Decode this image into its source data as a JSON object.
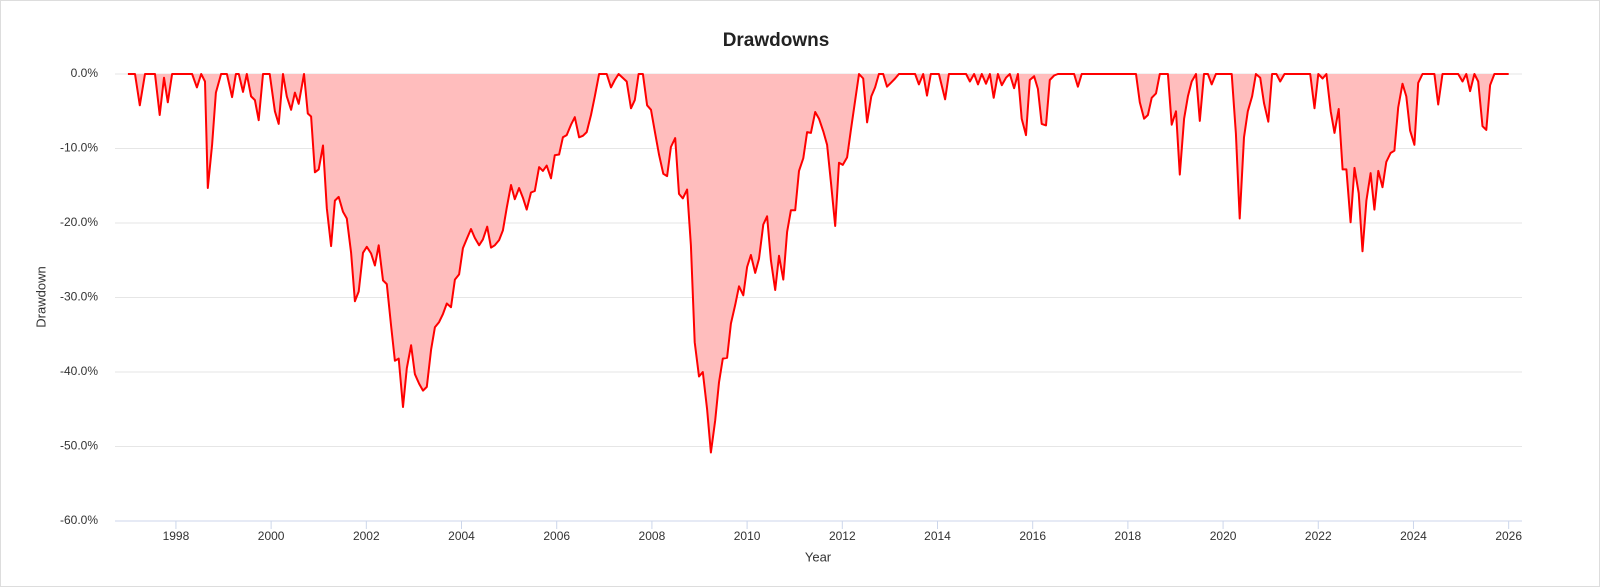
{
  "chart_data": {
    "type": "area",
    "title": "Drawdowns",
    "xlabel": "Year",
    "ylabel": "Drawdown",
    "series": [
      {
        "color": "#ff0000",
        "fill": "#ffbdbd",
        "x": [
          1996.99,
          1997.14,
          1997.24,
          1997.35,
          1997.56,
          1997.66,
          1997.75,
          1997.83,
          1997.92,
          1998.34,
          1998.44,
          1998.53,
          1998.61,
          1998.67,
          1998.76,
          1998.84,
          1998.95,
          1999.07,
          1999.18,
          1999.26,
          1999.32,
          1999.41,
          1999.49,
          1999.58,
          1999.66,
          1999.74,
          1999.83,
          1999.97,
          2000.08,
          2000.16,
          2000.25,
          2000.33,
          2000.42,
          2000.5,
          2000.58,
          2000.69,
          2000.77,
          2000.84,
          2000.92,
          2001.0,
          2001.09,
          2001.17,
          2001.26,
          2001.34,
          2001.42,
          2001.51,
          2001.59,
          2001.68,
          2001.76,
          2001.84,
          2001.93,
          2002.01,
          2002.1,
          2002.18,
          2002.26,
          2002.35,
          2002.43,
          2002.52,
          2002.6,
          2002.68,
          2002.77,
          2002.85,
          2002.94,
          2003.02,
          2003.11,
          2003.19,
          2003.27,
          2003.36,
          2003.44,
          2003.53,
          2003.61,
          2003.69,
          2003.78,
          2003.86,
          2003.95,
          2004.03,
          2004.12,
          2004.2,
          2004.28,
          2004.37,
          2004.45,
          2004.54,
          2004.62,
          2004.7,
          2004.79,
          2004.87,
          2004.95,
          2005.04,
          2005.12,
          2005.21,
          2005.29,
          2005.37,
          2005.46,
          2005.54,
          2005.63,
          2005.71,
          2005.79,
          2005.88,
          2005.96,
          2006.05,
          2006.13,
          2006.21,
          2006.3,
          2006.38,
          2006.47,
          2006.55,
          2006.63,
          2006.72,
          2006.8,
          2006.89,
          2007.05,
          2007.14,
          2007.22,
          2007.3,
          2007.47,
          2007.56,
          2007.64,
          2007.72,
          2007.81,
          2007.9,
          2007.98,
          2008.07,
          2008.15,
          2008.24,
          2008.32,
          2008.4,
          2008.49,
          2008.57,
          2008.65,
          2008.74,
          2008.82,
          2008.9,
          2008.99,
          2009.07,
          2009.16,
          2009.24,
          2009.33,
          2009.41,
          2009.49,
          2009.58,
          2009.66,
          2009.75,
          2009.83,
          2009.92,
          2010.0,
          2010.08,
          2010.17,
          2010.25,
          2010.34,
          2010.42,
          2010.5,
          2010.59,
          2010.67,
          2010.76,
          2010.84,
          2010.92,
          2011.01,
          2011.09,
          2011.18,
          2011.26,
          2011.34,
          2011.43,
          2011.51,
          2011.6,
          2011.68,
          2011.76,
          2011.85,
          2011.93,
          2012.01,
          2012.1,
          2012.18,
          2012.27,
          2012.35,
          2012.44,
          2012.52,
          2012.61,
          2012.69,
          2012.77,
          2012.86,
          2012.94,
          2013.02,
          2013.11,
          2013.19,
          2013.53,
          2013.61,
          2013.7,
          2013.78,
          2013.86,
          2014.03,
          2014.16,
          2014.24,
          2014.6,
          2014.68,
          2014.77,
          2014.85,
          2014.93,
          2015.02,
          2015.1,
          2015.18,
          2015.27,
          2015.35,
          2015.44,
          2015.52,
          2015.61,
          2015.69,
          2015.77,
          2015.86,
          2015.94,
          2016.03,
          2016.11,
          2016.19,
          2016.28,
          2016.36,
          2016.45,
          2016.53,
          2016.87,
          2016.95,
          2017.03,
          2018.17,
          2018.25,
          2018.34,
          2018.42,
          2018.5,
          2018.59,
          2018.67,
          2018.84,
          2018.92,
          2019.01,
          2019.09,
          2019.18,
          2019.26,
          2019.34,
          2019.43,
          2019.51,
          2019.6,
          2019.68,
          2019.76,
          2019.85,
          2020.18,
          2020.27,
          2020.35,
          2020.44,
          2020.52,
          2020.61,
          2020.69,
          2020.78,
          2020.86,
          2020.95,
          2021.03,
          2021.12,
          2021.2,
          2021.29,
          2021.83,
          2021.92,
          2022.0,
          2022.09,
          2022.17,
          2022.26,
          2022.34,
          2022.43,
          2022.51,
          2022.59,
          2022.68,
          2022.76,
          2022.85,
          2022.93,
          2023.01,
          2023.1,
          2023.18,
          2023.26,
          2023.35,
          2023.43,
          2023.52,
          2023.6,
          2023.68,
          2023.77,
          2023.85,
          2023.93,
          2024.02,
          2024.1,
          2024.19,
          2024.44,
          2024.52,
          2024.61,
          2024.94,
          2025.03,
          2025.11,
          2025.19,
          2025.28,
          2025.36,
          2025.45,
          2025.53,
          2025.61,
          2025.7,
          2026.0
        ],
        "values": [
          0,
          0,
          -4.2,
          0,
          0,
          -5.5,
          -0.5,
          -3.8,
          0,
          0,
          -1.8,
          0,
          -1,
          -15.3,
          -9.5,
          -2.5,
          0,
          0,
          -3.1,
          0,
          0,
          -2.4,
          0,
          -3,
          -3.5,
          -6.2,
          0,
          0,
          -5,
          -6.7,
          0,
          -3,
          -4.8,
          -2.5,
          -4,
          0,
          -5.3,
          -5.7,
          -13.2,
          -12.8,
          -9.6,
          -18,
          -23.1,
          -17,
          -16.5,
          -18.5,
          -19.4,
          -24,
          -30.5,
          -29.2,
          -24,
          -23.2,
          -24.1,
          -25.7,
          -23,
          -27.7,
          -28.2,
          -33.8,
          -38.5,
          -38.2,
          -44.7,
          -39.5,
          -36.4,
          -40.3,
          -41.6,
          -42.5,
          -42,
          -37,
          -34,
          -33.3,
          -32.2,
          -30.8,
          -31.3,
          -27.6,
          -26.9,
          -23.4,
          -22,
          -20.8,
          -22,
          -23,
          -22.2,
          -20.5,
          -23.3,
          -23,
          -22.3,
          -21,
          -18,
          -14.9,
          -16.8,
          -15.3,
          -16.6,
          -18.2,
          -15.9,
          -15.7,
          -12.5,
          -13,
          -12.3,
          -14,
          -10.9,
          -10.8,
          -8.5,
          -8.2,
          -6.8,
          -5.8,
          -8.5,
          -8.3,
          -7.8,
          -5.5,
          -3,
          0,
          0,
          -1.8,
          -0.8,
          0,
          -1,
          -4.6,
          -3.5,
          0,
          0,
          -4.2,
          -4.8,
          -8,
          -10.8,
          -13.4,
          -13.7,
          -9.8,
          -8.6,
          -16.1,
          -16.7,
          -15.5,
          -23,
          -36,
          -40.6,
          -40,
          -45,
          -50.8,
          -46.5,
          -41.4,
          -38.2,
          -38.1,
          -33.5,
          -31,
          -28.5,
          -29.7,
          -25.9,
          -24.3,
          -26.7,
          -24.8,
          -20.2,
          -19.1,
          -25,
          -29,
          -24.4,
          -27.6,
          -21.2,
          -18.3,
          -18.3,
          -13,
          -11.3,
          -7.8,
          -7.9,
          -5.1,
          -6,
          -7.7,
          -9.5,
          -14.5,
          -20.4,
          -11.9,
          -12.2,
          -11.2,
          -7.5,
          -3.5,
          0,
          -0.6,
          -6.5,
          -3,
          -1.8,
          0,
          0,
          -1.7,
          -1.2,
          -0.6,
          0,
          0,
          -1.4,
          0,
          -2.9,
          0,
          0,
          -3.4,
          0,
          0,
          -1,
          0,
          -1.4,
          0,
          -1.3,
          0,
          -3.2,
          0,
          -1.5,
          -0.5,
          0,
          -1.9,
          0,
          -6,
          -8.2,
          -0.8,
          -0.3,
          -2,
          -6.7,
          -6.9,
          -0.8,
          -0.2,
          0,
          0,
          -1.7,
          0,
          0,
          -3.8,
          -6,
          -5.5,
          -3.2,
          -2.6,
          0,
          0,
          -6.8,
          -5,
          -13.5,
          -6,
          -3,
          -1,
          0,
          -6.3,
          0,
          0,
          -1.4,
          0,
          0,
          -8,
          -19.4,
          -8.5,
          -5,
          -3,
          0,
          -0.5,
          -3.9,
          -6.4,
          0,
          0,
          -1,
          0,
          0,
          -4.6,
          0,
          -0.6,
          0,
          -5,
          -7.9,
          -4.7,
          -12.8,
          -12.8,
          -19.9,
          -12.6,
          -16,
          -23.8,
          -17,
          -13.3,
          -18.2,
          -13,
          -15.2,
          -11.8,
          -10.6,
          -10.3,
          -4.5,
          -1.3,
          -3,
          -7.6,
          -9.5,
          -1.2,
          0,
          0,
          -4.1,
          0,
          0,
          -1,
          0,
          -2.3,
          0,
          -1,
          -7,
          -7.5,
          -1.5,
          0,
          0
        ]
      }
    ],
    "xlim": [
      1996.72,
      2026.28
    ],
    "ylim": [
      -60,
      0
    ],
    "xticks": [
      1998,
      2000,
      2002,
      2004,
      2006,
      2008,
      2010,
      2012,
      2014,
      2016,
      2018,
      2020,
      2022,
      2024,
      2026
    ],
    "yticks": [
      {
        "value": 0,
        "label": "0.0%"
      },
      {
        "value": -10,
        "label": "-10.0%"
      },
      {
        "value": -20,
        "label": "-20.0%"
      },
      {
        "value": -30,
        "label": "-30.0%"
      },
      {
        "value": -40,
        "label": "-40.0%"
      },
      {
        "value": -50,
        "label": "-50.0%"
      },
      {
        "value": -60,
        "label": "-60.0%"
      }
    ],
    "grid": true
  }
}
